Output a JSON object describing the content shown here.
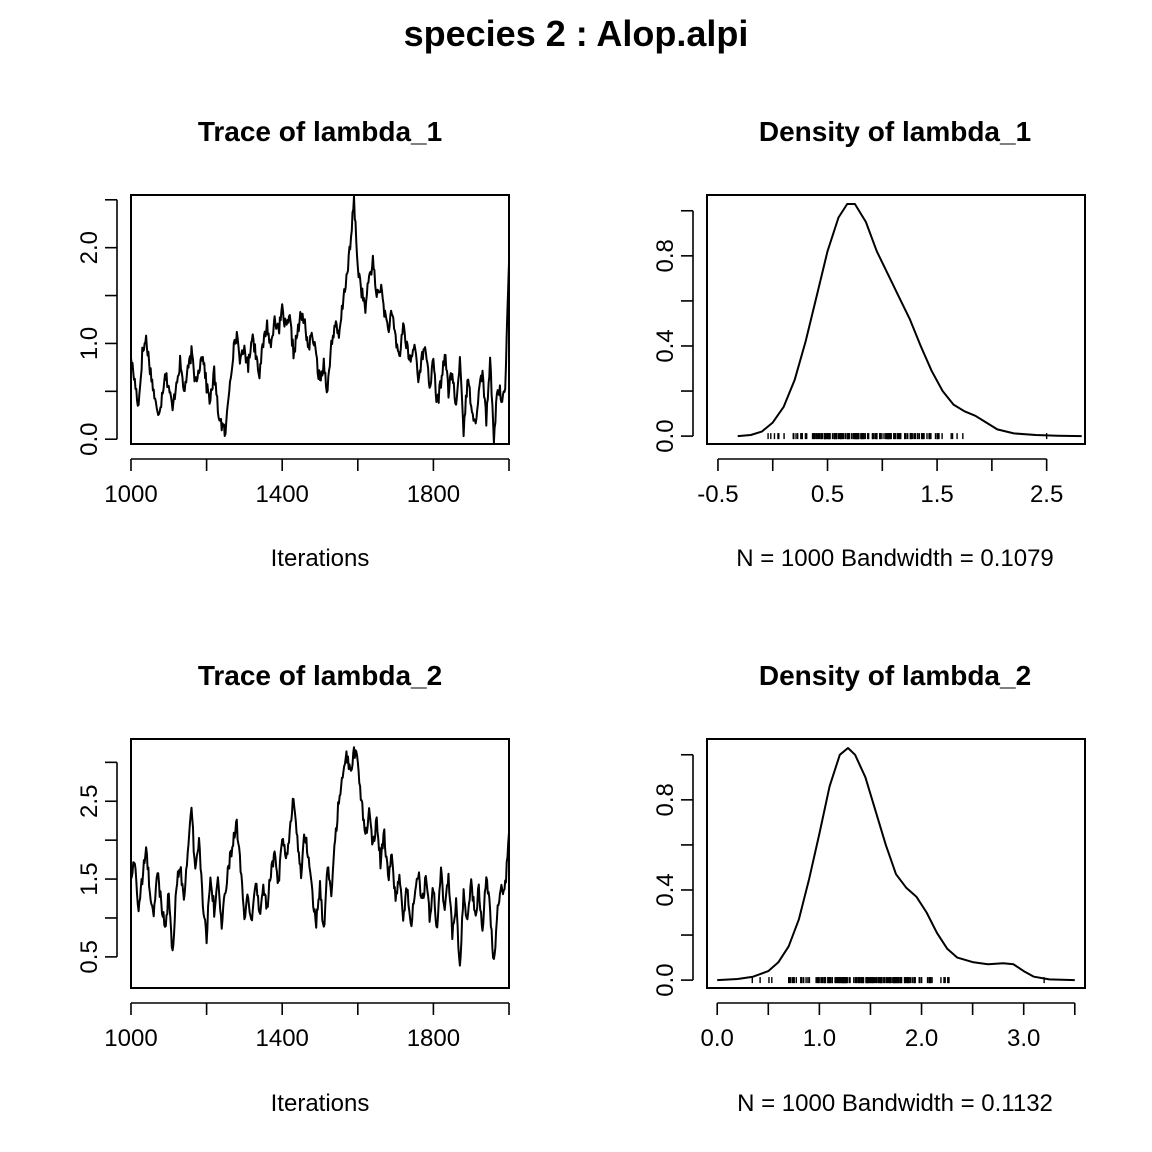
{
  "page_title": "species 2 : Alop.alpi",
  "chart_data": [
    {
      "type": "line",
      "title": "Trace of lambda_1",
      "xlabel": "Iterations",
      "ylabel": "",
      "xlim": [
        1000,
        2000
      ],
      "ylim": [
        -0.05,
        2.55
      ],
      "xticks": [
        1000,
        1200,
        1400,
        1600,
        1800,
        2000
      ],
      "xtick_labels": [
        "1000",
        "",
        "1400",
        "",
        "1800",
        ""
      ],
      "yticks": [
        0.0,
        0.5,
        1.0,
        1.5,
        2.0,
        2.5
      ],
      "ytick_labels": [
        "0.0",
        "",
        "1.0",
        "",
        "2.0",
        ""
      ],
      "anchors": [
        [
          1000,
          0.85
        ],
        [
          1010,
          0.6
        ],
        [
          1020,
          0.35
        ],
        [
          1030,
          0.9
        ],
        [
          1040,
          1.05
        ],
        [
          1050,
          0.75
        ],
        [
          1060,
          0.5
        ],
        [
          1070,
          0.25
        ],
        [
          1080,
          0.4
        ],
        [
          1090,
          0.7
        ],
        [
          1100,
          0.55
        ],
        [
          1110,
          0.3
        ],
        [
          1120,
          0.6
        ],
        [
          1130,
          0.8
        ],
        [
          1140,
          0.5
        ],
        [
          1150,
          0.7
        ],
        [
          1160,
          0.9
        ],
        [
          1170,
          0.6
        ],
        [
          1180,
          0.75
        ],
        [
          1190,
          0.9
        ],
        [
          1200,
          0.55
        ],
        [
          1210,
          0.4
        ],
        [
          1220,
          0.7
        ],
        [
          1230,
          0.3
        ],
        [
          1240,
          0.15
        ],
        [
          1250,
          0.05
        ],
        [
          1260,
          0.55
        ],
        [
          1270,
          0.9
        ],
        [
          1280,
          1.1
        ],
        [
          1290,
          0.8
        ],
        [
          1300,
          0.95
        ],
        [
          1310,
          0.75
        ],
        [
          1320,
          1.1
        ],
        [
          1330,
          0.9
        ],
        [
          1340,
          0.7
        ],
        [
          1350,
          1.0
        ],
        [
          1360,
          1.2
        ],
        [
          1370,
          0.95
        ],
        [
          1380,
          1.3
        ],
        [
          1390,
          1.1
        ],
        [
          1400,
          1.35
        ],
        [
          1410,
          1.15
        ],
        [
          1420,
          1.25
        ],
        [
          1430,
          0.9
        ],
        [
          1440,
          1.1
        ],
        [
          1450,
          1.3
        ],
        [
          1460,
          1.2
        ],
        [
          1470,
          0.95
        ],
        [
          1480,
          1.1
        ],
        [
          1490,
          0.85
        ],
        [
          1500,
          0.6
        ],
        [
          1510,
          0.8
        ],
        [
          1520,
          0.5
        ],
        [
          1530,
          1.0
        ],
        [
          1540,
          1.2
        ],
        [
          1550,
          1.05
        ],
        [
          1560,
          1.4
        ],
        [
          1570,
          1.7
        ],
        [
          1580,
          2.0
        ],
        [
          1590,
          2.5
        ],
        [
          1600,
          1.8
        ],
        [
          1610,
          1.55
        ],
        [
          1620,
          1.35
        ],
        [
          1630,
          1.7
        ],
        [
          1640,
          1.85
        ],
        [
          1650,
          1.5
        ],
        [
          1660,
          1.6
        ],
        [
          1670,
          1.35
        ],
        [
          1680,
          1.15
        ],
        [
          1690,
          1.3
        ],
        [
          1700,
          1.05
        ],
        [
          1710,
          0.85
        ],
        [
          1720,
          1.2
        ],
        [
          1730,
          0.95
        ],
        [
          1740,
          0.8
        ],
        [
          1750,
          1.0
        ],
        [
          1760,
          0.65
        ],
        [
          1770,
          0.85
        ],
        [
          1780,
          0.95
        ],
        [
          1790,
          0.55
        ],
        [
          1800,
          0.8
        ],
        [
          1810,
          0.35
        ],
        [
          1820,
          0.6
        ],
        [
          1830,
          0.9
        ],
        [
          1840,
          0.5
        ],
        [
          1850,
          0.7
        ],
        [
          1860,
          0.3
        ],
        [
          1870,
          0.85
        ],
        [
          1880,
          0.1
        ],
        [
          1890,
          0.6
        ],
        [
          1900,
          0.4
        ],
        [
          1910,
          0.15
        ],
        [
          1920,
          0.5
        ],
        [
          1930,
          0.7
        ],
        [
          1940,
          0.2
        ],
        [
          1950,
          0.8
        ],
        [
          1960,
          0.0
        ],
        [
          1970,
          0.55
        ],
        [
          1980,
          0.45
        ],
        [
          1990,
          0.5
        ],
        [
          2000,
          1.85
        ]
      ]
    },
    {
      "type": "line",
      "title": "Density of lambda_1",
      "xlabel": "N = 1000   Bandwidth = 0.1079",
      "ylabel": "",
      "xlim": [
        -0.6,
        2.85
      ],
      "ylim": [
        -0.035,
        1.07
      ],
      "xticks": [
        -0.5,
        0.0,
        0.5,
        1.0,
        1.5,
        2.0,
        2.5
      ],
      "xtick_labels": [
        "-0.5",
        "",
        "0.5",
        "",
        "1.5",
        "",
        "2.5"
      ],
      "yticks": [
        0.0,
        0.2,
        0.4,
        0.6,
        0.8,
        1.0
      ],
      "ytick_labels": [
        "0.0",
        "",
        "0.4",
        "",
        "0.8",
        ""
      ],
      "curve": [
        [
          -0.32,
          0.0
        ],
        [
          -0.2,
          0.005
        ],
        [
          -0.1,
          0.02
        ],
        [
          0.0,
          0.06
        ],
        [
          0.1,
          0.13
        ],
        [
          0.2,
          0.25
        ],
        [
          0.3,
          0.42
        ],
        [
          0.4,
          0.62
        ],
        [
          0.5,
          0.82
        ],
        [
          0.6,
          0.97
        ],
        [
          0.68,
          1.03
        ],
        [
          0.75,
          1.03
        ],
        [
          0.85,
          0.95
        ],
        [
          0.95,
          0.82
        ],
        [
          1.05,
          0.72
        ],
        [
          1.15,
          0.62
        ],
        [
          1.25,
          0.52
        ],
        [
          1.35,
          0.4
        ],
        [
          1.45,
          0.29
        ],
        [
          1.55,
          0.2
        ],
        [
          1.65,
          0.14
        ],
        [
          1.75,
          0.11
        ],
        [
          1.85,
          0.09
        ],
        [
          1.95,
          0.06
        ],
        [
          2.05,
          0.03
        ],
        [
          2.2,
          0.012
        ],
        [
          2.4,
          0.005
        ],
        [
          2.6,
          0.002
        ],
        [
          2.82,
          0.0
        ]
      ],
      "rug_range": [
        -0.05,
        2.3
      ],
      "rug_outlier": 2.5,
      "rug_center": 0.8,
      "rug_spread": 0.5
    },
    {
      "type": "line",
      "title": "Trace of lambda_2",
      "xlabel": "Iterations",
      "ylabel": "",
      "xlim": [
        1000,
        2000
      ],
      "ylim": [
        0.1,
        3.3
      ],
      "xticks": [
        1000,
        1200,
        1400,
        1600,
        1800,
        2000
      ],
      "xtick_labels": [
        "1000",
        "",
        "1400",
        "",
        "1800",
        ""
      ],
      "yticks": [
        0.5,
        1.0,
        1.5,
        2.0,
        2.5,
        3.0
      ],
      "ytick_labels": [
        "0.5",
        "",
        "1.5",
        "",
        "2.5",
        ""
      ],
      "anchors": [
        [
          1000,
          1.5
        ],
        [
          1010,
          1.75
        ],
        [
          1020,
          1.1
        ],
        [
          1030,
          1.5
        ],
        [
          1040,
          1.9
        ],
        [
          1050,
          1.35
        ],
        [
          1060,
          1.0
        ],
        [
          1070,
          1.6
        ],
        [
          1080,
          1.2
        ],
        [
          1090,
          0.9
        ],
        [
          1100,
          1.3
        ],
        [
          1110,
          0.5
        ],
        [
          1120,
          1.4
        ],
        [
          1130,
          1.7
        ],
        [
          1140,
          1.2
        ],
        [
          1150,
          1.9
        ],
        [
          1160,
          2.4
        ],
        [
          1170,
          1.6
        ],
        [
          1180,
          2.0
        ],
        [
          1190,
          1.2
        ],
        [
          1200,
          0.75
        ],
        [
          1210,
          1.6
        ],
        [
          1220,
          1.1
        ],
        [
          1230,
          1.5
        ],
        [
          1240,
          0.9
        ],
        [
          1250,
          1.35
        ],
        [
          1260,
          1.7
        ],
        [
          1270,
          2.0
        ],
        [
          1280,
          2.2
        ],
        [
          1290,
          1.6
        ],
        [
          1300,
          1.0
        ],
        [
          1310,
          1.3
        ],
        [
          1320,
          0.9
        ],
        [
          1330,
          1.5
        ],
        [
          1340,
          1.05
        ],
        [
          1350,
          1.4
        ],
        [
          1360,
          1.1
        ],
        [
          1370,
          1.6
        ],
        [
          1380,
          1.8
        ],
        [
          1390,
          1.4
        ],
        [
          1400,
          2.0
        ],
        [
          1410,
          1.75
        ],
        [
          1420,
          2.1
        ],
        [
          1430,
          2.6
        ],
        [
          1440,
          2.0
        ],
        [
          1450,
          1.6
        ],
        [
          1460,
          2.1
        ],
        [
          1470,
          1.8
        ],
        [
          1480,
          1.3
        ],
        [
          1490,
          0.95
        ],
        [
          1500,
          1.4
        ],
        [
          1510,
          0.8
        ],
        [
          1520,
          1.7
        ],
        [
          1530,
          1.3
        ],
        [
          1540,
          2.0
        ],
        [
          1550,
          2.5
        ],
        [
          1560,
          2.8
        ],
        [
          1570,
          3.1
        ],
        [
          1580,
          2.85
        ],
        [
          1590,
          3.15
        ],
        [
          1600,
          3.0
        ],
        [
          1610,
          2.5
        ],
        [
          1620,
          2.0
        ],
        [
          1630,
          2.4
        ],
        [
          1640,
          1.9
        ],
        [
          1650,
          2.3
        ],
        [
          1660,
          1.7
        ],
        [
          1670,
          2.1
        ],
        [
          1680,
          1.5
        ],
        [
          1690,
          1.8
        ],
        [
          1700,
          1.2
        ],
        [
          1710,
          1.5
        ],
        [
          1720,
          1.0
        ],
        [
          1730,
          1.4
        ],
        [
          1740,
          0.9
        ],
        [
          1750,
          1.3
        ],
        [
          1760,
          1.6
        ],
        [
          1770,
          1.2
        ],
        [
          1780,
          1.5
        ],
        [
          1790,
          1.0
        ],
        [
          1800,
          1.4
        ],
        [
          1810,
          0.8
        ],
        [
          1820,
          1.6
        ],
        [
          1830,
          1.1
        ],
        [
          1840,
          1.5
        ],
        [
          1850,
          0.8
        ],
        [
          1860,
          1.2
        ],
        [
          1870,
          0.3
        ],
        [
          1880,
          1.4
        ],
        [
          1890,
          0.9
        ],
        [
          1900,
          1.5
        ],
        [
          1910,
          1.0
        ],
        [
          1920,
          1.35
        ],
        [
          1930,
          0.9
        ],
        [
          1940,
          1.5
        ],
        [
          1950,
          1.1
        ],
        [
          1960,
          0.4
        ],
        [
          1970,
          1.1
        ],
        [
          1980,
          1.35
        ],
        [
          1990,
          1.4
        ],
        [
          2000,
          2.1
        ]
      ]
    },
    {
      "type": "line",
      "title": "Density of lambda_2",
      "xlabel": "N = 1000   Bandwidth = 0.1132",
      "ylabel": "",
      "xlim": [
        -0.1,
        3.6
      ],
      "ylim": [
        -0.035,
        1.07
      ],
      "xticks": [
        0.0,
        0.5,
        1.0,
        1.5,
        2.0,
        2.5,
        3.0,
        3.5
      ],
      "xtick_labels": [
        "0.0",
        "",
        "1.0",
        "",
        "2.0",
        "",
        "3.0",
        ""
      ],
      "yticks": [
        0.0,
        0.2,
        0.4,
        0.6,
        0.8,
        1.0
      ],
      "ytick_labels": [
        "0.0",
        "",
        "0.4",
        "",
        "0.8",
        ""
      ],
      "curve": [
        [
          0.0,
          0.0
        ],
        [
          0.2,
          0.005
        ],
        [
          0.35,
          0.015
        ],
        [
          0.5,
          0.04
        ],
        [
          0.6,
          0.08
        ],
        [
          0.7,
          0.15
        ],
        [
          0.8,
          0.27
        ],
        [
          0.9,
          0.45
        ],
        [
          1.0,
          0.65
        ],
        [
          1.1,
          0.86
        ],
        [
          1.2,
          1.0
        ],
        [
          1.28,
          1.03
        ],
        [
          1.35,
          1.0
        ],
        [
          1.45,
          0.9
        ],
        [
          1.55,
          0.75
        ],
        [
          1.65,
          0.6
        ],
        [
          1.75,
          0.47
        ],
        [
          1.85,
          0.41
        ],
        [
          1.95,
          0.37
        ],
        [
          2.05,
          0.3
        ],
        [
          2.15,
          0.21
        ],
        [
          2.25,
          0.14
        ],
        [
          2.35,
          0.1
        ],
        [
          2.5,
          0.08
        ],
        [
          2.65,
          0.07
        ],
        [
          2.8,
          0.075
        ],
        [
          2.9,
          0.07
        ],
        [
          3.0,
          0.04
        ],
        [
          3.1,
          0.015
        ],
        [
          3.25,
          0.003
        ],
        [
          3.5,
          0.0
        ]
      ],
      "rug_range": [
        0.2,
        3.1
      ],
      "rug_outlier": 3.2,
      "rug_center": 1.4,
      "rug_spread": 0.5
    }
  ]
}
